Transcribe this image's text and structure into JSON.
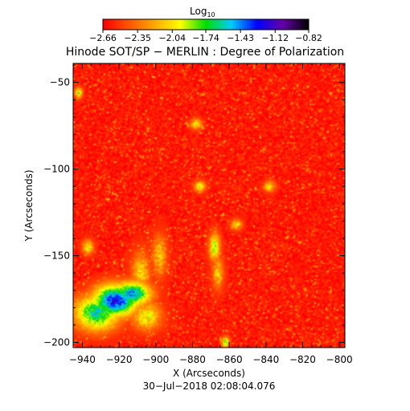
{
  "chart_data": {
    "type": "heatmap",
    "title": "Hinode SOT/SP − MERLIN : Degree of Polarization",
    "xlabel": "X (Arcseconds)",
    "ylabel": "Y (Arcseconds)",
    "xlim": [
      -945,
      -797
    ],
    "ylim": [
      -203,
      -39
    ],
    "xticks": [
      -940,
      -920,
      -900,
      -880,
      -860,
      -840,
      -820,
      -800
    ],
    "yticks": [
      -50,
      -100,
      -150,
      -200
    ],
    "xtick_labels": [
      "−940",
      "−920",
      "−900",
      "−880",
      "−860",
      "−840",
      "−820",
      "−800"
    ],
    "ytick_labels": [
      "−50",
      "−100",
      "−150",
      "−200"
    ],
    "colorbar": {
      "label_base": "Log",
      "label_sub": "10",
      "range": [
        -2.66,
        -0.82
      ],
      "tick_values": [
        -2.66,
        -2.35,
        -2.04,
        -1.74,
        -1.43,
        -1.12,
        -0.82
      ],
      "tick_labels": [
        "−2.66",
        "−2.35",
        "−2.04",
        "−1.74",
        "−1.43",
        "−1.12",
        "−0.82"
      ],
      "colors": [
        "#ff0000",
        "#ff5500",
        "#ffaa00",
        "#ffff00",
        "#00dd00",
        "#00ccff",
        "#0000ff",
        "#6600aa",
        "#000000"
      ]
    },
    "dominant_level": -2.6,
    "features": [
      {
        "x": -922,
        "y": -176,
        "level": -1.25,
        "sx": 12,
        "sy": 9
      },
      {
        "x": -913,
        "y": -172,
        "level": -1.45,
        "sx": 10,
        "sy": 7
      },
      {
        "x": -932,
        "y": -183,
        "level": -1.6,
        "sx": 12,
        "sy": 10
      },
      {
        "x": -905,
        "y": -185,
        "level": -2.0,
        "sx": 8,
        "sy": 8
      },
      {
        "x": -908,
        "y": -160,
        "level": -2.1,
        "sx": 5,
        "sy": 12
      },
      {
        "x": -898,
        "y": -150,
        "level": -2.15,
        "sx": 4,
        "sy": 12
      },
      {
        "x": -868,
        "y": -145,
        "level": -1.9,
        "sx": 3,
        "sy": 8
      },
      {
        "x": -866,
        "y": -160,
        "level": -2.1,
        "sx": 3,
        "sy": 9
      },
      {
        "x": -937,
        "y": -145,
        "level": -2.0,
        "sx": 3,
        "sy": 4
      },
      {
        "x": -942,
        "y": -56,
        "level": -1.9,
        "sx": 2,
        "sy": 3
      },
      {
        "x": -878,
        "y": -74,
        "level": -2.0,
        "sx": 3,
        "sy": 3
      },
      {
        "x": -876,
        "y": -110,
        "level": -2.0,
        "sx": 3,
        "sy": 3
      },
      {
        "x": -838,
        "y": -110,
        "level": -2.05,
        "sx": 3,
        "sy": 3
      },
      {
        "x": -856,
        "y": -132,
        "level": -2.1,
        "sx": 3,
        "sy": 3
      },
      {
        "x": -862,
        "y": -200,
        "level": -1.8,
        "sx": 2,
        "sy": 3
      }
    ]
  },
  "footer": {
    "timestamp": "30−Jul−2018 02:08:04.076"
  }
}
